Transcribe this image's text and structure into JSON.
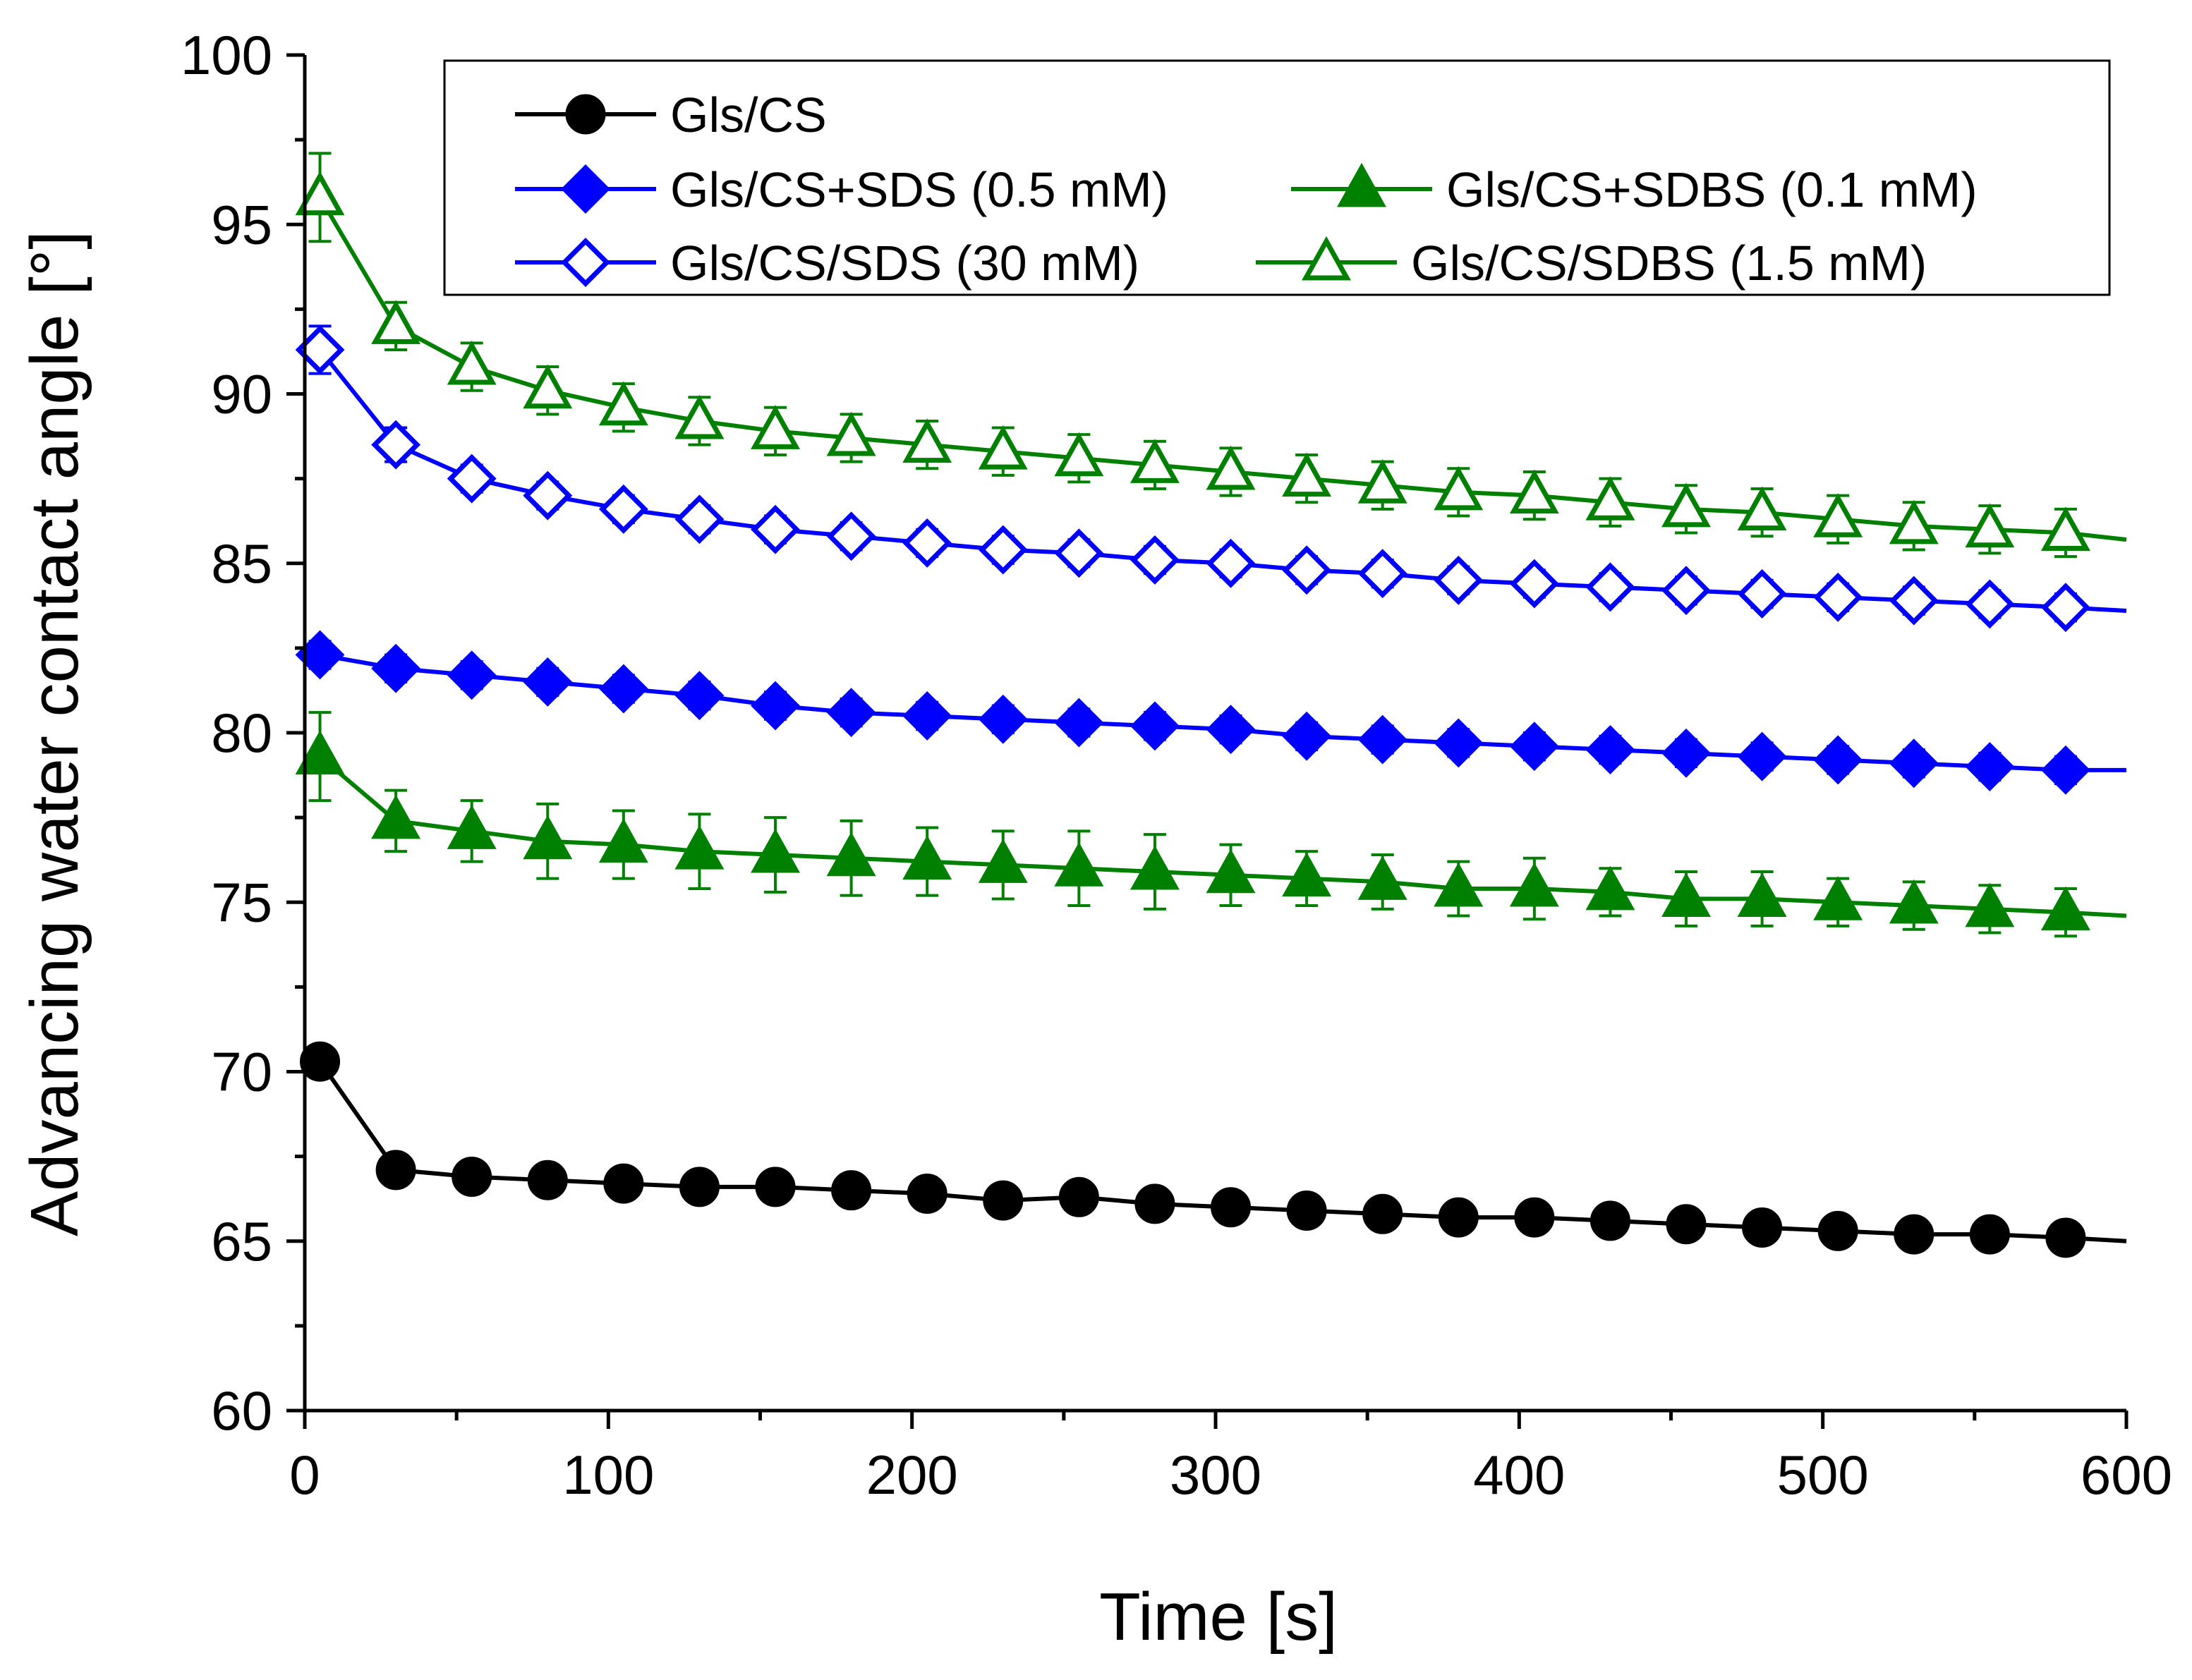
{
  "chart_data": {
    "type": "line",
    "title": "",
    "xlabel": "Time [s]",
    "ylabel": "Advancing water contact angle [°]",
    "xlim": [
      0,
      600
    ],
    "ylim": [
      60,
      100
    ],
    "xticks": [
      0,
      100,
      200,
      300,
      400,
      500,
      600
    ],
    "yticks": [
      60,
      65,
      70,
      75,
      80,
      85,
      90,
      95,
      100
    ],
    "xtick_labels": [
      "0",
      "100",
      "200",
      "300",
      "400",
      "500",
      "600"
    ],
    "ytick_labels": [
      "60",
      "65",
      "70",
      "75",
      "80",
      "85",
      "90",
      "95",
      "100"
    ],
    "grid": false,
    "legend_position": "top-right",
    "x": [
      5,
      30,
      55,
      80,
      105,
      130,
      155,
      180,
      205,
      230,
      255,
      280,
      305,
      330,
      355,
      380,
      405,
      430,
      455,
      480,
      505,
      530,
      555,
      580
    ],
    "series": [
      {
        "name": "Gls/CS",
        "color": "#000000",
        "marker": "circle",
        "filled": true,
        "values": [
          70.3,
          67.1,
          66.9,
          66.8,
          66.7,
          66.6,
          66.6,
          66.5,
          66.4,
          66.2,
          66.3,
          66.1,
          66.0,
          65.9,
          65.8,
          65.7,
          65.7,
          65.6,
          65.5,
          65.4,
          65.3,
          65.2,
          65.2,
          65.1
        ],
        "errors": [
          0.4,
          0.3,
          0.3,
          0.3,
          0.3,
          0.3,
          0.3,
          0.3,
          0.3,
          0.3,
          0.3,
          0.3,
          0.3,
          0.3,
          0.3,
          0.3,
          0.3,
          0.3,
          0.3,
          0.3,
          0.3,
          0.3,
          0.3,
          0.3
        ]
      },
      {
        "name": "Gls/CS+SDS (0.5 mM)",
        "color": "#0000ff",
        "marker": "diamond",
        "filled": true,
        "values": [
          82.3,
          81.9,
          81.7,
          81.5,
          81.3,
          81.1,
          80.8,
          80.6,
          80.5,
          80.4,
          80.3,
          80.2,
          80.1,
          79.9,
          79.8,
          79.7,
          79.6,
          79.5,
          79.4,
          79.3,
          79.2,
          79.1,
          79.0,
          78.9
        ],
        "errors": [
          0.4,
          0.4,
          0.4,
          0.4,
          0.4,
          0.4,
          0.4,
          0.4,
          0.4,
          0.4,
          0.4,
          0.4,
          0.4,
          0.4,
          0.4,
          0.4,
          0.4,
          0.4,
          0.4,
          0.4,
          0.4,
          0.4,
          0.4,
          0.4
        ]
      },
      {
        "name": "Gls/CS+SDBS (0.1 mM)",
        "color": "#008000",
        "marker": "triangle",
        "filled": true,
        "values": [
          79.3,
          77.4,
          77.1,
          76.8,
          76.7,
          76.5,
          76.4,
          76.3,
          76.2,
          76.1,
          76.0,
          75.9,
          75.8,
          75.7,
          75.6,
          75.4,
          75.4,
          75.3,
          75.1,
          75.1,
          75.0,
          74.9,
          74.8,
          74.7
        ],
        "errors": [
          1.3,
          0.9,
          0.9,
          1.1,
          1.0,
          1.1,
          1.1,
          1.1,
          1.0,
          1.0,
          1.1,
          1.1,
          0.9,
          0.8,
          0.8,
          0.8,
          0.9,
          0.7,
          0.8,
          0.8,
          0.7,
          0.7,
          0.7,
          0.7
        ]
      },
      {
        "name": "Gls/CS/SDS (30 mM)",
        "color": "#0000ff",
        "marker": "diamond",
        "filled": false,
        "values": [
          91.3,
          88.5,
          87.5,
          87.0,
          86.6,
          86.3,
          86.0,
          85.8,
          85.6,
          85.4,
          85.3,
          85.1,
          85.0,
          84.8,
          84.7,
          84.5,
          84.4,
          84.3,
          84.2,
          84.1,
          84.0,
          83.9,
          83.8,
          83.7
        ],
        "errors": [
          0.7,
          0.5,
          0.4,
          0.4,
          0.4,
          0.4,
          0.4,
          0.4,
          0.4,
          0.4,
          0.4,
          0.4,
          0.4,
          0.4,
          0.4,
          0.4,
          0.4,
          0.4,
          0.4,
          0.4,
          0.4,
          0.4,
          0.4,
          0.4
        ]
      },
      {
        "name": "Gls/CS/SDBS (1.5 mM)",
        "color": "#008000",
        "marker": "triangle",
        "filled": false,
        "values": [
          95.8,
          92.0,
          90.8,
          90.1,
          89.6,
          89.2,
          88.9,
          88.7,
          88.5,
          88.3,
          88.1,
          87.9,
          87.7,
          87.5,
          87.3,
          87.1,
          87.0,
          86.8,
          86.6,
          86.5,
          86.3,
          86.1,
          86.0,
          85.9
        ],
        "errors": [
          1.3,
          0.7,
          0.7,
          0.7,
          0.7,
          0.7,
          0.7,
          0.7,
          0.7,
          0.7,
          0.7,
          0.7,
          0.7,
          0.7,
          0.7,
          0.7,
          0.7,
          0.7,
          0.7,
          0.7,
          0.7,
          0.7,
          0.7,
          0.7
        ]
      }
    ],
    "smooth_end": {
      "x": 600,
      "values": [
        65.0,
        78.9,
        74.6,
        83.6,
        85.7
      ]
    }
  }
}
